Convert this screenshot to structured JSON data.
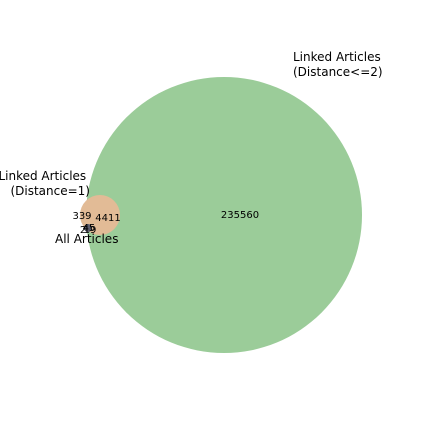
{
  "chart_data": {
    "type": "venn",
    "sets": [
      {
        "key": "d2",
        "label_lines": [
          "Linked Articles",
          "(Distance<=2)"
        ],
        "color": "#8fc68e"
      },
      {
        "key": "d1",
        "label_lines": [
          "Linked Articles",
          "(Distance=1)"
        ],
        "color": "#e6b896"
      },
      {
        "key": "all",
        "label_lines": [
          "All Articles"
        ],
        "color": "#5a5a6a"
      }
    ],
    "regions": [
      {
        "sets": [
          "d2"
        ],
        "value": "235560"
      },
      {
        "sets": [
          "d1",
          "d2"
        ],
        "value": "4411"
      },
      {
        "sets": [
          "d1"
        ],
        "value": "339"
      },
      {
        "sets": [
          "all",
          "d1",
          "d2"
        ],
        "value": "45"
      },
      {
        "sets": [
          "all",
          "d1"
        ],
        "value": "2"
      },
      {
        "sets": [
          "all"
        ],
        "value": "19"
      }
    ]
  }
}
